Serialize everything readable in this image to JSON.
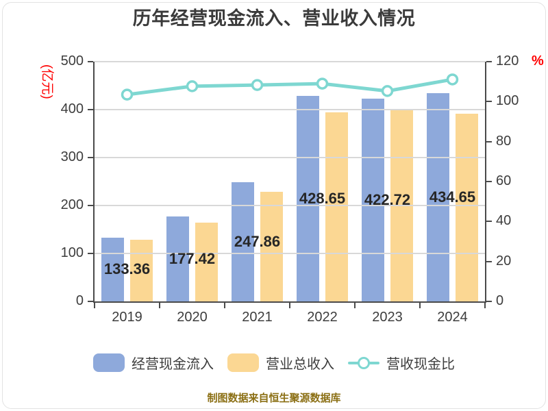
{
  "footer_note": "制图数据来自恒生聚源数据库",
  "chart_data": {
    "type": "bar",
    "title": "历年经营现金流入、营业收入情况",
    "categories": [
      "2019",
      "2020",
      "2021",
      "2022",
      "2023",
      "2024"
    ],
    "series": [
      {
        "name": "经营现金流入",
        "chart_type": "bar",
        "y_axis": "left",
        "color": "#8EA9DB",
        "values": [
          133.36,
          177.42,
          247.86,
          428.65,
          422.72,
          434.65
        ],
        "show_data_labels": true
      },
      {
        "name": "营业总收入",
        "chart_type": "bar",
        "y_axis": "left",
        "color": "#FBD793",
        "values": [
          128,
          164,
          228,
          394,
          402,
          392
        ],
        "show_data_labels": false
      },
      {
        "name": "营收现金比",
        "chart_type": "line",
        "y_axis": "right",
        "color": "#7ED7D1",
        "marker": "circle",
        "values": [
          103.5,
          107.7,
          108.3,
          109.0,
          105.3,
          111.1
        ],
        "show_data_labels": false
      }
    ],
    "left_axis": {
      "unit": "(亿元)",
      "min": 0,
      "max": 500,
      "tick_step": 100,
      "unit_color": "#FF0000"
    },
    "right_axis": {
      "unit": "%",
      "min": 0,
      "max": 120,
      "tick_step": 20,
      "unit_color": "#FF0000"
    },
    "grid": true,
    "legend_position": "bottom"
  },
  "legend": [
    {
      "label": "经营现金流入",
      "type": "bar",
      "color": "#8EA9DB"
    },
    {
      "label": "营业总收入",
      "type": "bar",
      "color": "#FBD793"
    },
    {
      "label": "营收现金比",
      "type": "line",
      "color": "#7ED7D1"
    }
  ],
  "colors": {
    "grid": "#D8D8D8",
    "axis": "#4A4A4A",
    "text": "#3D3D3D",
    "title": "#3A3A3A",
    "unit_red": "#FF0000"
  }
}
